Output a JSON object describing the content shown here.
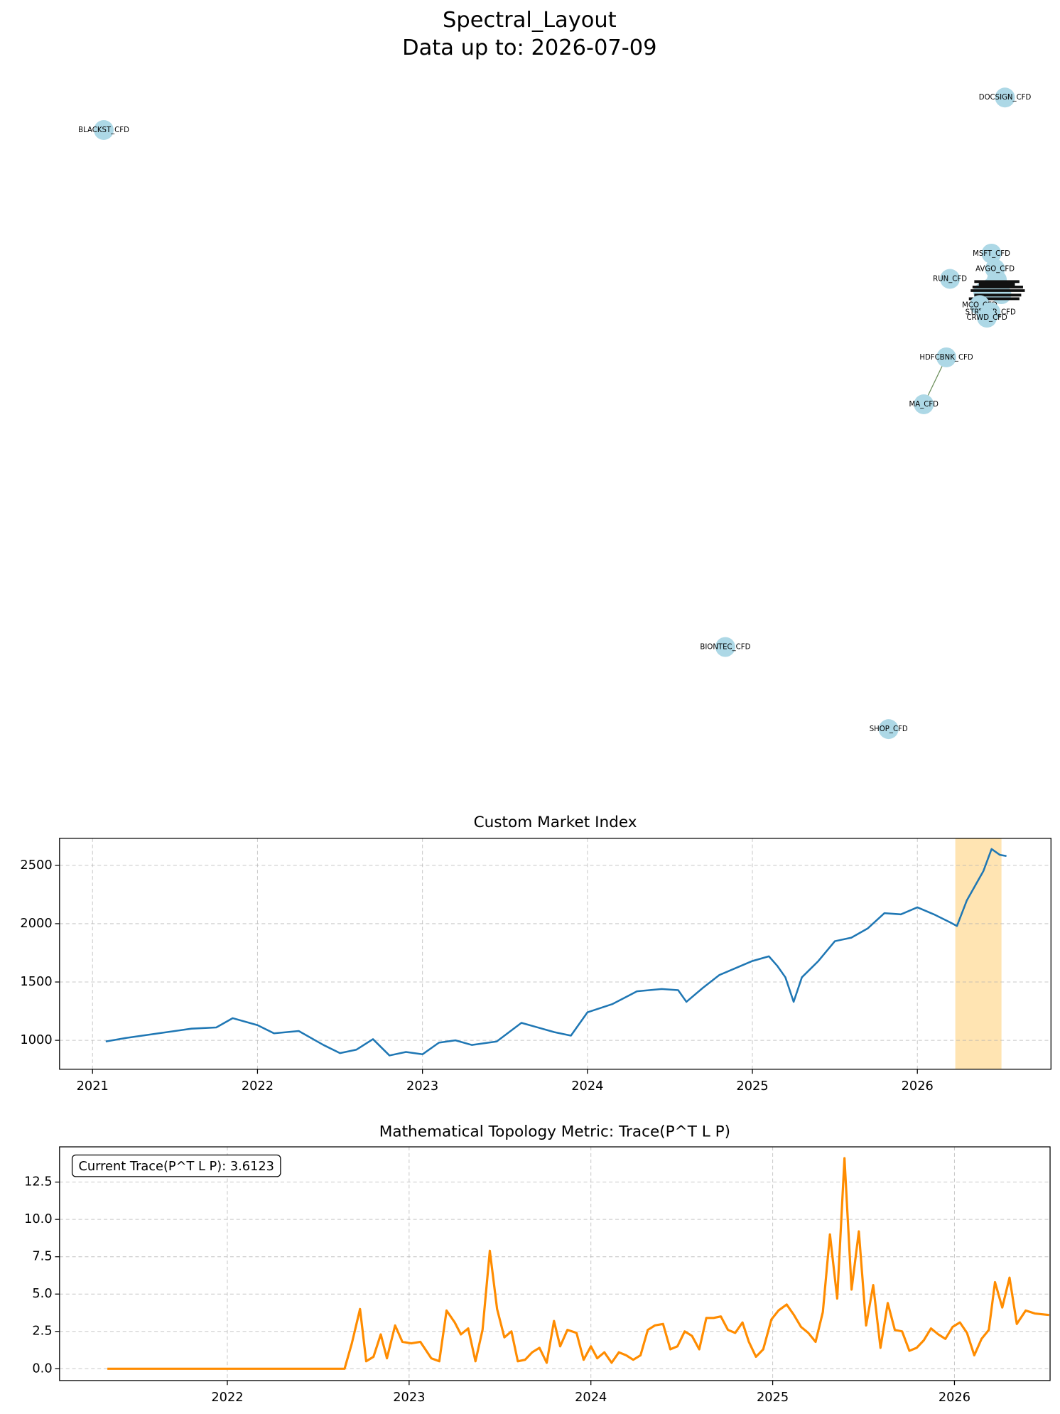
{
  "chart_data": [
    {
      "type": "network",
      "title": "Spectral_Layout",
      "subtitle": "Data up to: 2026-07-09",
      "nodes": [
        "BLACKST_CFD",
        "DOCSIGN_CFD",
        "MSFT_CFD",
        "AVGO_CFD",
        "RUN_CFD",
        "MCO_CFD",
        "STRYKER_CFD",
        "CRWD_CFD",
        "HDFCBNK_CFD",
        "MA_CFD",
        "BIONTEC_CFD",
        "SHOP_CFD"
      ],
      "node_color": "#add8e6",
      "edge_color": "#6b8e5a",
      "edges": [
        [
          8,
          9
        ]
      ]
    },
    {
      "type": "line",
      "title": "Custom Market Index",
      "x": [
        2021.08,
        2021.2,
        2021.4,
        2021.6,
        2021.75,
        2021.85,
        2022.0,
        2022.1,
        2022.25,
        2022.4,
        2022.5,
        2022.6,
        2022.7,
        2022.8,
        2022.9,
        2023.0,
        2023.1,
        2023.2,
        2023.3,
        2023.45,
        2023.6,
        2023.7,
        2023.8,
        2023.9,
        2024.0,
        2024.15,
        2024.3,
        2024.45,
        2024.55,
        2024.6,
        2024.7,
        2024.8,
        2024.9,
        2025.0,
        2025.1,
        2025.15,
        2025.2,
        2025.25,
        2025.3,
        2025.4,
        2025.5,
        2025.6,
        2025.7,
        2025.8,
        2025.9,
        2026.0,
        2026.1,
        2026.2,
        2026.24,
        2026.3,
        2026.4,
        2026.45,
        2026.5,
        2026.54
      ],
      "series": [
        {
          "color": "#1f77b4",
          "values": [
            990,
            1020,
            1060,
            1100,
            1110,
            1190,
            1130,
            1060,
            1080,
            960,
            890,
            920,
            1010,
            870,
            900,
            880,
            980,
            1000,
            960,
            990,
            1150,
            1110,
            1070,
            1040,
            1240,
            1310,
            1420,
            1440,
            1430,
            1330,
            1450,
            1560,
            1620,
            1680,
            1720,
            1640,
            1540,
            1330,
            1540,
            1680,
            1850,
            1880,
            1960,
            2090,
            2080,
            2140,
            2080,
            2010,
            1980,
            2200,
            2450,
            2640,
            2590,
            2580
          ]
        }
      ],
      "highlight": [
        2026.23,
        2026.51
      ],
      "highlight_color": "#ffa500",
      "xlim": [
        2020.8,
        2026.81
      ],
      "xticks": [
        2021,
        2022,
        2023,
        2024,
        2025,
        2026
      ],
      "ylim": [
        752,
        2732
      ],
      "yticks": [
        1000,
        1500,
        2000,
        2500
      ],
      "grid": true
    },
    {
      "type": "line",
      "title": "Mathematical Topology Metric: Trace(P^T L P)",
      "annotation": "Current Trace(P^T L P): 3.6123",
      "x": [
        2021.34,
        2022.645,
        2022.685,
        2022.73,
        2022.764,
        2022.804,
        2022.844,
        2022.878,
        2022.923,
        2022.963,
        2023.012,
        2023.062,
        2023.122,
        2023.166,
        2023.206,
        2023.251,
        2023.285,
        2023.325,
        2023.365,
        2023.404,
        2023.444,
        2023.484,
        2023.524,
        2023.563,
        2023.598,
        2023.638,
        2023.677,
        2023.717,
        2023.757,
        2023.797,
        2023.831,
        2023.871,
        2023.921,
        2023.96,
        2024.0,
        2024.035,
        2024.074,
        2024.114,
        2024.154,
        2024.194,
        2024.233,
        2024.273,
        2024.313,
        2024.352,
        2024.397,
        2024.437,
        2024.476,
        2024.516,
        2024.556,
        2024.596,
        2024.635,
        2024.675,
        2024.715,
        2024.754,
        2024.794,
        2024.834,
        2024.869,
        2024.908,
        2024.948,
        2024.993,
        2025.032,
        2025.077,
        2025.117,
        2025.156,
        2025.196,
        2025.236,
        2025.276,
        2025.315,
        2025.355,
        2025.395,
        2025.434,
        2025.474,
        2025.514,
        2025.553,
        2025.593,
        2025.633,
        2025.672,
        2025.712,
        2025.752,
        2025.792,
        2025.831,
        2025.871,
        2025.911,
        2025.95,
        2025.99,
        2026.03,
        2026.069,
        2026.109,
        2026.149,
        2026.189,
        2026.223,
        2026.263,
        2026.303,
        2026.343,
        2026.392,
        2026.442,
        2026.521
      ],
      "series": [
        {
          "color": "#ff8c00",
          "values": [
            0,
            0,
            1.7,
            4.0,
            0.5,
            0.8,
            2.3,
            0.7,
            2.9,
            1.8,
            1.7,
            1.8,
            0.7,
            0.5,
            3.9,
            3.1,
            2.3,
            2.7,
            0.5,
            2.6,
            7.9,
            4.0,
            2.1,
            2.5,
            0.5,
            0.6,
            1.1,
            1.4,
            0.4,
            3.2,
            1.5,
            2.6,
            2.4,
            0.6,
            1.5,
            0.7,
            1.1,
            0.4,
            1.1,
            0.9,
            0.6,
            0.9,
            2.6,
            2.9,
            3.0,
            1.3,
            1.5,
            2.5,
            2.2,
            1.3,
            3.4,
            3.4,
            3.5,
            2.6,
            2.4,
            3.1,
            1.8,
            0.8,
            1.3,
            3.3,
            3.9,
            4.3,
            3.6,
            2.8,
            2.4,
            1.8,
            3.8,
            9.0,
            4.7,
            14.1,
            5.3,
            9.2,
            2.9,
            5.6,
            1.4,
            4.4,
            2.6,
            2.5,
            1.2,
            1.4,
            1.9,
            2.7,
            2.3,
            2.0,
            2.8,
            3.1,
            2.4,
            0.9,
            2.0,
            2.6,
            5.8,
            4.1,
            6.1,
            3.0,
            3.9,
            3.7,
            3.6
          ]
        }
      ],
      "xlim": [
        2021.077,
        2026.526
      ],
      "xticks": [
        2022,
        2023,
        2024,
        2025,
        2026
      ],
      "ylim": [
        -0.79,
        14.86
      ],
      "yticks": [
        {
          "value": 0,
          "label": "0.0"
        },
        {
          "value": 2.5,
          "label": "2.5"
        },
        {
          "value": 5,
          "label": "5.0"
        },
        {
          "value": 7.5,
          "label": "7.5"
        },
        {
          "value": 10,
          "label": "10.0"
        },
        {
          "value": 12.5,
          "label": "12.5"
        }
      ],
      "grid": true
    }
  ]
}
